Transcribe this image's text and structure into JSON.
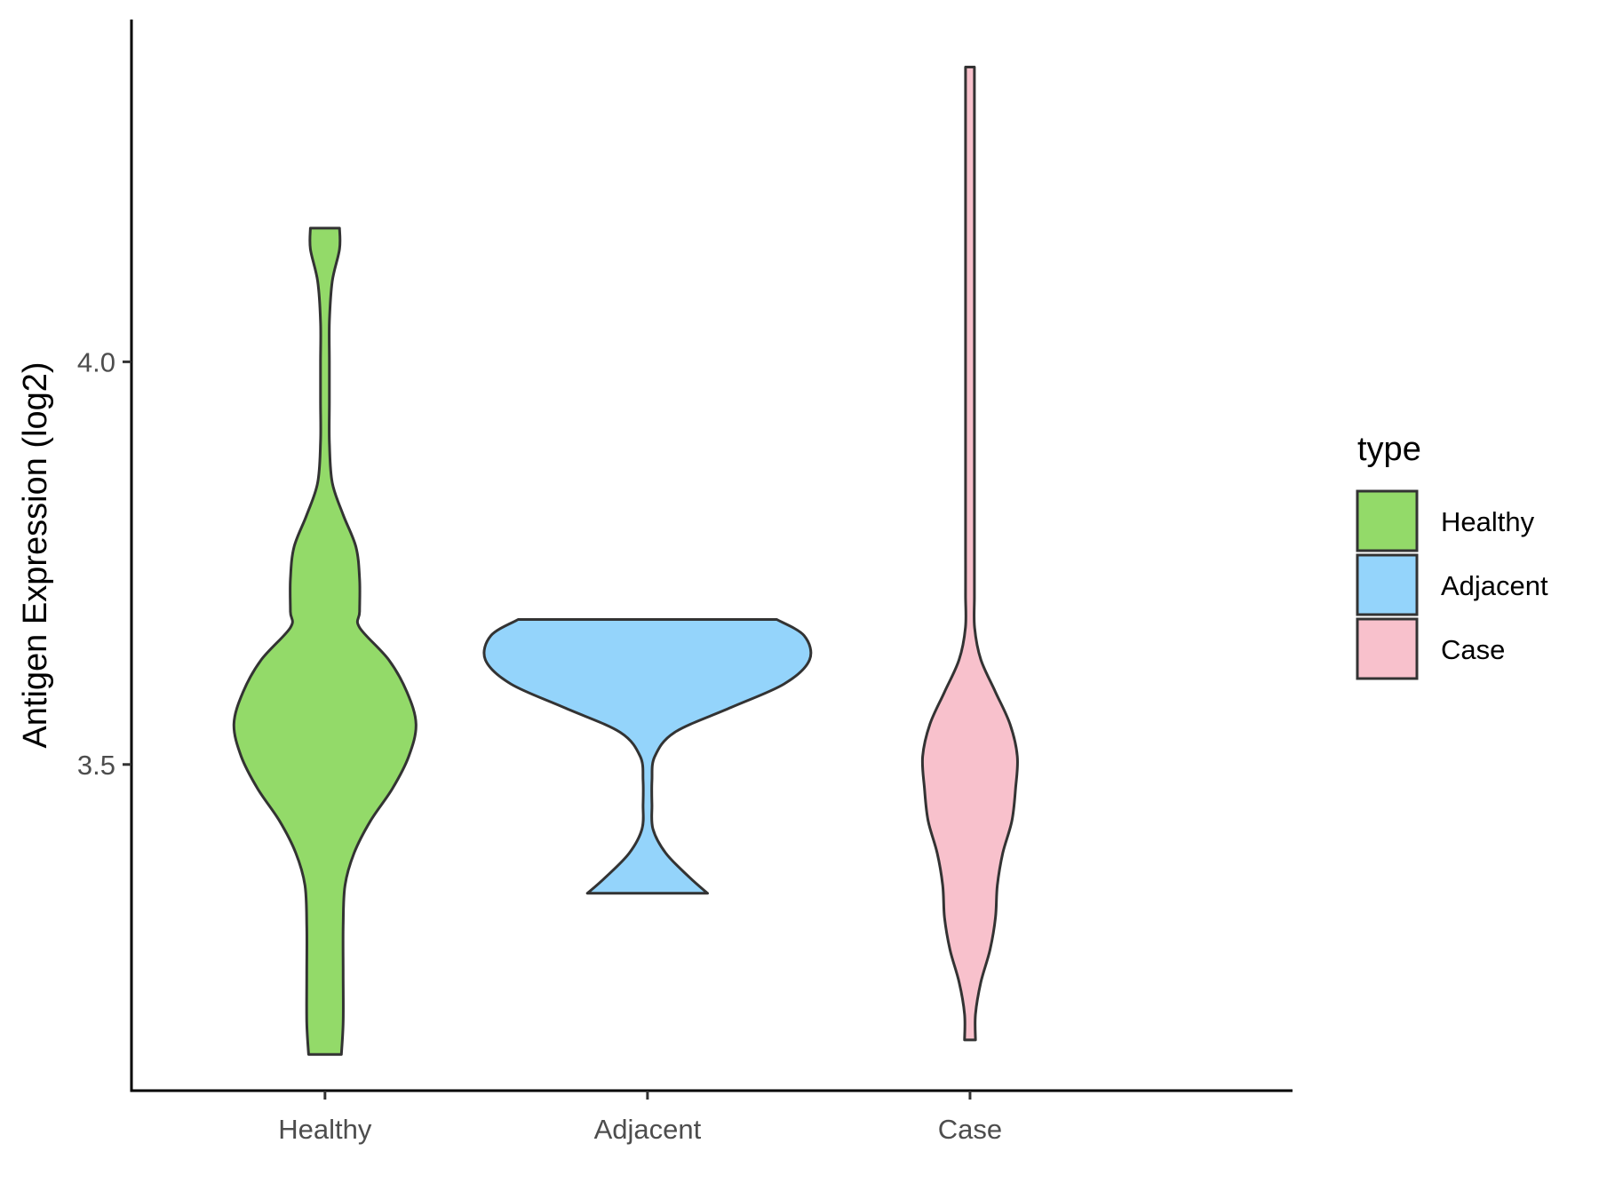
{
  "chart_data": {
    "type": "violin",
    "title": "",
    "xlabel": "",
    "ylabel": "Antigen Expression (log2)",
    "ylim": [
      3.095,
      4.425
    ],
    "yticks": [
      3.5,
      4.0
    ],
    "ytick_labels": [
      "3.5",
      "4.0"
    ],
    "categories": [
      "Healthy",
      "Adjacent",
      "Case"
    ],
    "grid": false,
    "legend": {
      "title": "type",
      "position": "right",
      "entries": [
        "Healthy",
        "Adjacent",
        "Case"
      ]
    },
    "series": [
      {
        "category": "Healthy",
        "color": "#93DA69",
        "min": 3.14,
        "max": 4.166,
        "density_profile": [
          [
            3.14,
            0.09
          ],
          [
            3.18,
            0.1
          ],
          [
            3.24,
            0.1
          ],
          [
            3.3,
            0.1
          ],
          [
            3.35,
            0.11
          ],
          [
            3.39,
            0.16
          ],
          [
            3.43,
            0.25
          ],
          [
            3.47,
            0.37
          ],
          [
            3.51,
            0.46
          ],
          [
            3.55,
            0.5
          ],
          [
            3.59,
            0.45
          ],
          [
            3.63,
            0.35
          ],
          [
            3.67,
            0.19
          ],
          [
            3.69,
            0.19
          ],
          [
            3.73,
            0.19
          ],
          [
            3.77,
            0.17
          ],
          [
            3.81,
            0.1
          ],
          [
            3.85,
            0.04
          ],
          [
            3.9,
            0.015
          ],
          [
            3.95,
            0.012
          ],
          [
            4.0,
            0.012
          ],
          [
            4.05,
            0.012
          ],
          [
            4.1,
            0.04
          ],
          [
            4.14,
            0.08
          ],
          [
            4.166,
            0.08
          ]
        ]
      },
      {
        "category": "Adjacent",
        "color": "#94D4FB",
        "min": 3.34,
        "max": 3.68,
        "density_profile": [
          [
            3.34,
            0.33
          ],
          [
            3.36,
            0.23
          ],
          [
            3.39,
            0.1
          ],
          [
            3.42,
            0.03
          ],
          [
            3.45,
            0.02
          ],
          [
            3.48,
            0.02
          ],
          [
            3.51,
            0.04
          ],
          [
            3.54,
            0.15
          ],
          [
            3.57,
            0.45
          ],
          [
            3.6,
            0.75
          ],
          [
            3.63,
            0.89
          ],
          [
            3.66,
            0.86
          ],
          [
            3.68,
            0.71
          ]
        ]
      },
      {
        "category": "Case",
        "color": "#F8C1CC",
        "min": 3.158,
        "max": 4.366,
        "density_profile": [
          [
            3.158,
            0.03
          ],
          [
            3.19,
            0.03
          ],
          [
            3.23,
            0.06
          ],
          [
            3.27,
            0.11
          ],
          [
            3.31,
            0.14
          ],
          [
            3.35,
            0.15
          ],
          [
            3.39,
            0.18
          ],
          [
            3.43,
            0.23
          ],
          [
            3.47,
            0.25
          ],
          [
            3.51,
            0.26
          ],
          [
            3.55,
            0.22
          ],
          [
            3.59,
            0.14
          ],
          [
            3.63,
            0.06
          ],
          [
            3.67,
            0.025
          ],
          [
            3.71,
            0.005
          ],
          [
            3.76,
            -0.01
          ],
          [
            3.81,
            -0.02
          ],
          [
            3.86,
            -0.02
          ],
          [
            3.91,
            -0.015
          ],
          [
            3.96,
            -0.01
          ],
          [
            4.01,
            -0.005
          ],
          [
            4.06,
            -0.01
          ],
          [
            4.1,
            0.01
          ],
          [
            4.14,
            -0.005
          ],
          [
            4.19,
            0.0
          ],
          [
            4.25,
            -0.005
          ],
          [
            4.3,
            -0.01
          ],
          [
            4.366,
            -0.01
          ]
        ]
      }
    ]
  }
}
